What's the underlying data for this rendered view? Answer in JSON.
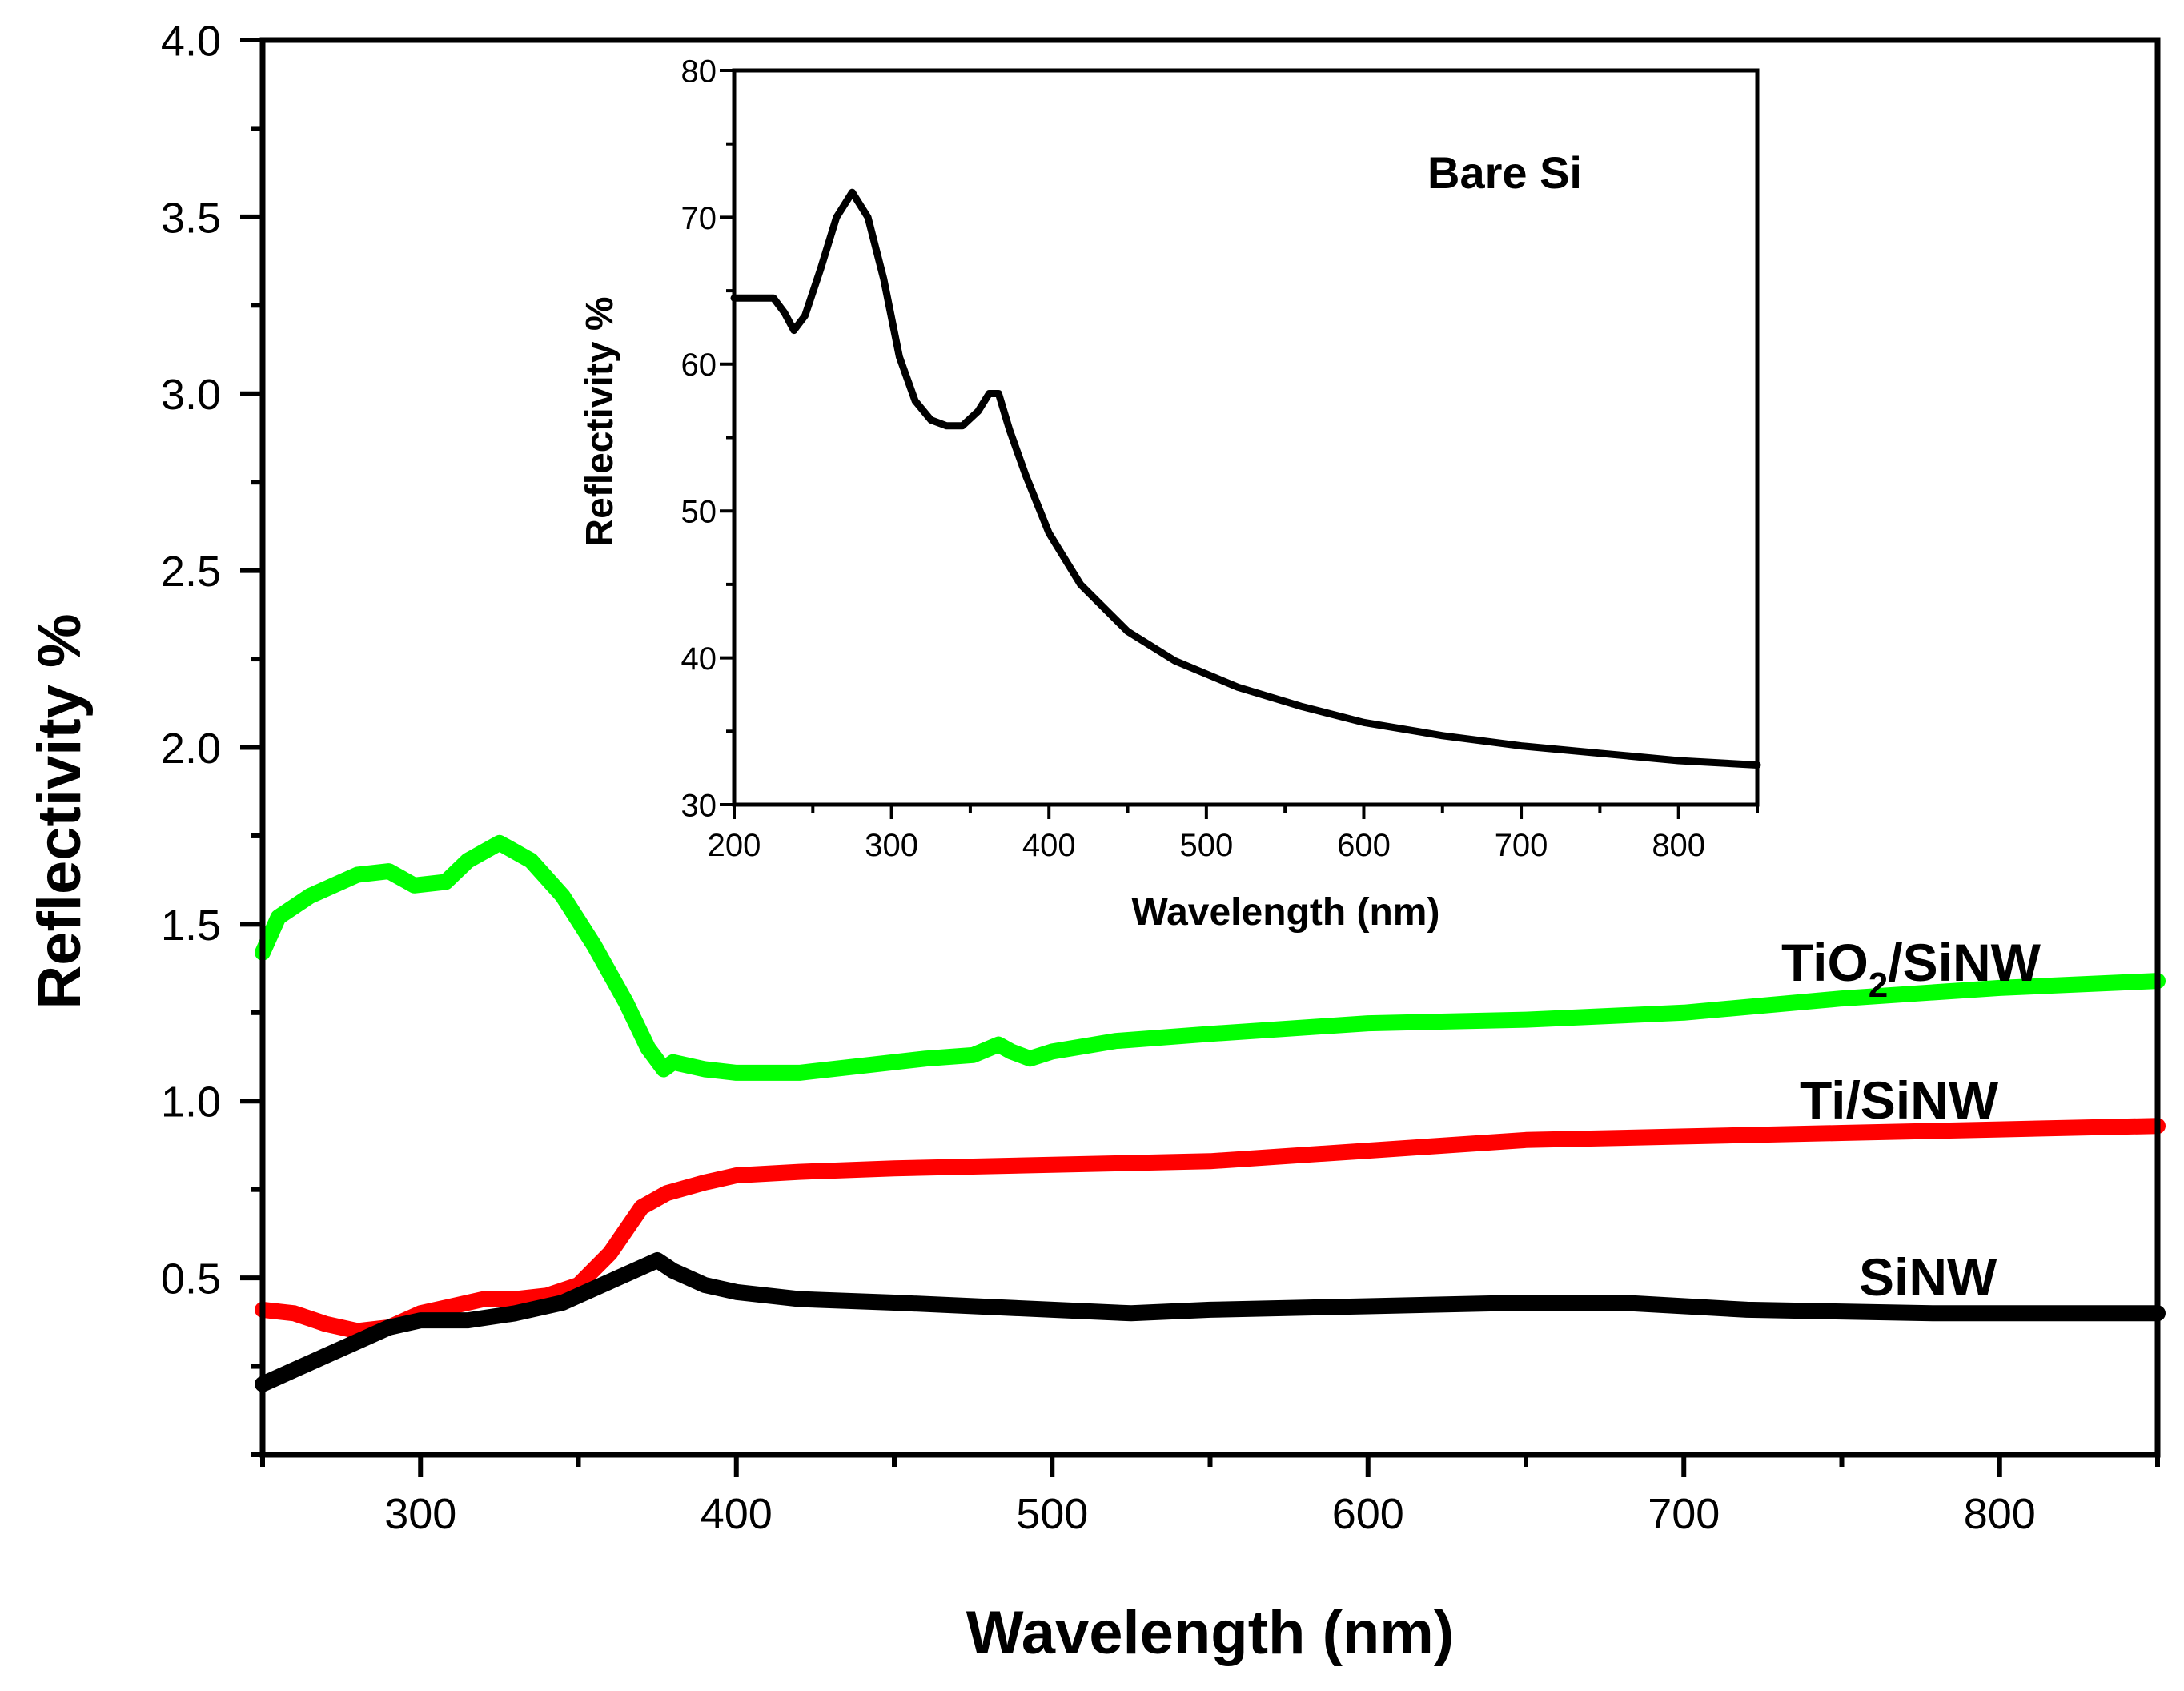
{
  "chart_data": [
    {
      "type": "line",
      "xlabel": "Wavelength (nm)",
      "ylabel": "Reflectivity %",
      "xlim": [
        250,
        850
      ],
      "ylim": [
        0,
        4.0
      ],
      "xticks": [
        300,
        400,
        500,
        600,
        700,
        800
      ],
      "xtick_labels": [
        "300",
        "400",
        "500",
        "600",
        "700",
        "800"
      ],
      "yticks": [
        0.5,
        1.0,
        1.5,
        2.0,
        2.5,
        3.0,
        3.5,
        4.0
      ],
      "ytick_labels": [
        "0.5",
        "1.0",
        "1.5",
        "2.0",
        "2.5",
        "3.0",
        "3.5",
        "4.0"
      ],
      "grid": false,
      "series": [
        {
          "name": "TiO2/SiNW",
          "label_main": "TiO",
          "label_sub": "2",
          "label_rest": "/SiNW",
          "color": "#00ff00",
          "x": [
            250,
            255,
            265,
            280,
            290,
            298,
            308,
            315,
            325,
            335,
            345,
            355,
            365,
            372,
            377,
            380,
            390,
            400,
            420,
            440,
            460,
            475,
            483,
            487,
            493,
            500,
            520,
            550,
            600,
            650,
            700,
            750,
            800,
            850
          ],
          "y": [
            1.42,
            1.52,
            1.58,
            1.64,
            1.65,
            1.61,
            1.62,
            1.68,
            1.73,
            1.68,
            1.58,
            1.44,
            1.28,
            1.15,
            1.09,
            1.11,
            1.09,
            1.08,
            1.08,
            1.1,
            1.12,
            1.13,
            1.16,
            1.14,
            1.12,
            1.14,
            1.17,
            1.19,
            1.22,
            1.23,
            1.25,
            1.29,
            1.32,
            1.34
          ]
        },
        {
          "name": "Ti/SiNW",
          "label_main": "Ti/SiNW",
          "color": "#ff0000",
          "x": [
            250,
            260,
            270,
            280,
            290,
            300,
            310,
            320,
            330,
            340,
            350,
            360,
            370,
            378,
            390,
            400,
            420,
            450,
            500,
            550,
            600,
            650,
            700,
            750,
            800,
            850
          ],
          "y": [
            0.41,
            0.4,
            0.37,
            0.35,
            0.36,
            0.4,
            0.42,
            0.44,
            0.44,
            0.45,
            0.48,
            0.57,
            0.7,
            0.74,
            0.77,
            0.79,
            0.8,
            0.81,
            0.82,
            0.83,
            0.86,
            0.89,
            0.9,
            0.91,
            0.92,
            0.93
          ]
        },
        {
          "name": "SiNW",
          "label_main": "SiNW",
          "color": "#000000",
          "x": [
            250,
            260,
            270,
            280,
            290,
            300,
            315,
            330,
            345,
            360,
            370,
            375,
            380,
            390,
            400,
            420,
            450,
            500,
            525,
            550,
            600,
            650,
            680,
            720,
            780,
            850
          ],
          "y": [
            0.2,
            0.24,
            0.28,
            0.32,
            0.36,
            0.38,
            0.38,
            0.4,
            0.43,
            0.49,
            0.53,
            0.55,
            0.52,
            0.48,
            0.46,
            0.44,
            0.43,
            0.41,
            0.4,
            0.41,
            0.42,
            0.43,
            0.43,
            0.41,
            0.4,
            0.4
          ]
        }
      ]
    },
    {
      "type": "line",
      "title": "Bare Si",
      "xlabel": "Wavelength (nm)",
      "ylabel": "Reflectivity %",
      "xlim": [
        200,
        850
      ],
      "ylim": [
        30,
        80
      ],
      "xticks": [
        200,
        300,
        400,
        500,
        600,
        700,
        800
      ],
      "xtick_labels": [
        "200",
        "300",
        "400",
        "500",
        "600",
        "700",
        "800"
      ],
      "yticks": [
        30,
        40,
        50,
        60,
        70,
        80
      ],
      "ytick_labels": [
        "30",
        "40",
        "50",
        "60",
        "70",
        "80"
      ],
      "grid": false,
      "series": [
        {
          "name": "Bare Si",
          "color": "#000000",
          "x": [
            200,
            215,
            225,
            232,
            238,
            245,
            255,
            265,
            275,
            285,
            295,
            305,
            315,
            325,
            335,
            345,
            355,
            362,
            368,
            375,
            385,
            400,
            420,
            450,
            480,
            520,
            560,
            600,
            650,
            700,
            750,
            800,
            850
          ],
          "y": [
            64.5,
            64.5,
            64.5,
            63.5,
            62.3,
            63.3,
            66.5,
            70.0,
            71.7,
            70.0,
            65.8,
            60.5,
            57.5,
            56.2,
            55.8,
            55.8,
            56.8,
            58.0,
            58.0,
            55.5,
            52.5,
            48.5,
            45.0,
            41.8,
            39.8,
            38.0,
            36.7,
            35.6,
            34.7,
            34.0,
            33.5,
            33.0,
            32.7
          ]
        }
      ]
    }
  ]
}
